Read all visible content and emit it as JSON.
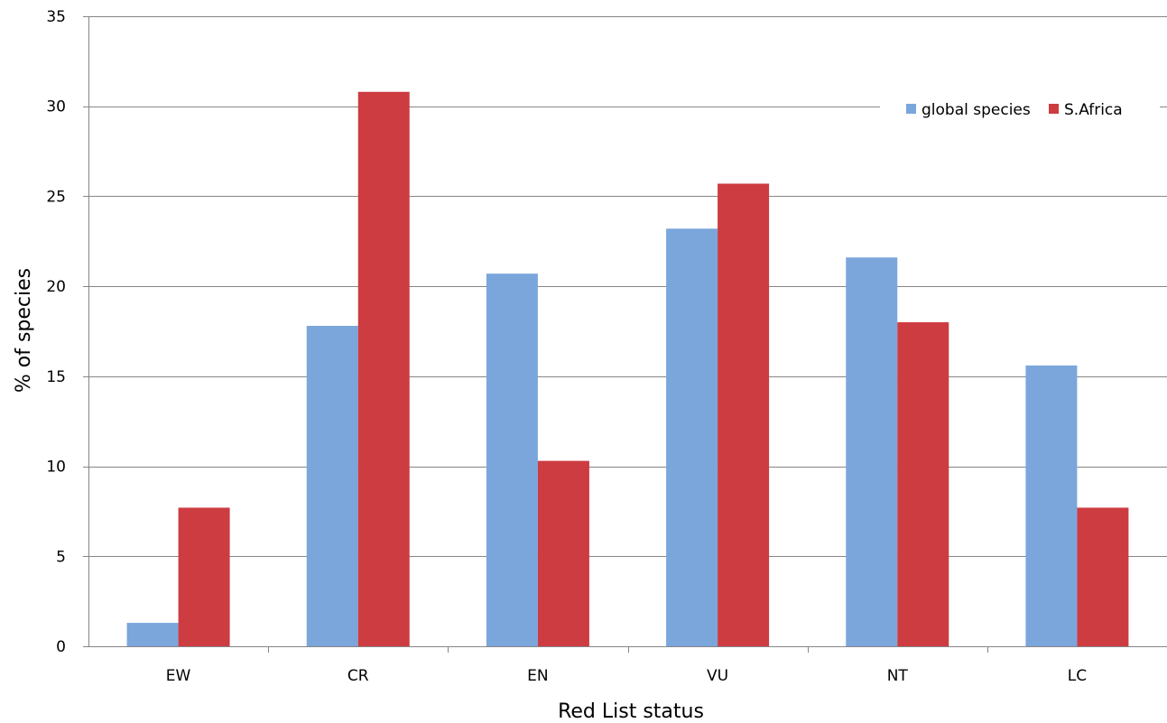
{
  "chart_data": {
    "type": "bar",
    "title": "",
    "xlabel": "Red List status",
    "ylabel": "% of species",
    "categories": [
      "EW",
      "CR",
      "EN",
      "VU",
      "NT",
      "LC"
    ],
    "series": [
      {
        "name": "global species",
        "color": "#7aa6dc",
        "values": [
          1.3,
          17.8,
          20.7,
          23.2,
          21.6,
          15.6
        ]
      },
      {
        "name": "S.Africa",
        "color": "#cd3c40",
        "values": [
          7.7,
          30.8,
          10.3,
          25.7,
          18.0,
          7.7
        ]
      }
    ],
    "ylim": [
      0,
      35
    ],
    "yticks": [
      0,
      5,
      10,
      15,
      20,
      25,
      30,
      35
    ],
    "grid": true,
    "legend": "top-right"
  }
}
